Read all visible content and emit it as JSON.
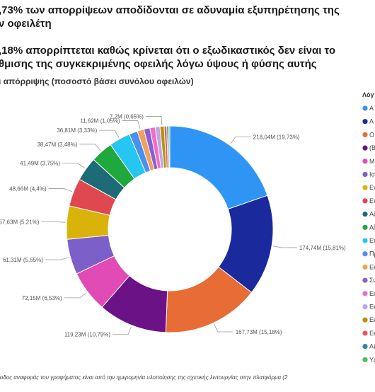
{
  "header": {
    "line1": ",73% των απορρίψεων αποδίδονται σε αδυναμία εξυπηρέτησης της",
    "line2": "ν οφειλέτη",
    "line3": ",18% απορρίπτεται καθώς κρίνεται ότι ο εξωδικαστικός δεν είναι το",
    "line4": "θμισης της συγκεκριμένης οφειλής λόγω ύψους ή φύσης αυτής"
  },
  "subtitle": "ι απόρριψης (ποσοστό βάσει συνόλου οφειλών)",
  "footnote": "ίοδος αναφοράς του γραφήματος είναι από την ημερομηνία υλοποίησης της σχετικής λειτουργίας στην πλατφόρμα (2",
  "chart_data": {
    "type": "pie",
    "variant": "donut",
    "legend_title": "Λόγ",
    "legend_position": "right",
    "slices": [
      {
        "legend": "Α",
        "label": "218,04M (19,73%)",
        "value": 218.04,
        "percent": 19.73,
        "color": "#2f95f5"
      },
      {
        "legend": "Α",
        "label": "174,74M (15,81%)",
        "value": 174.74,
        "percent": 15.81,
        "color": "#1a2a9c"
      },
      {
        "legend": "Ο",
        "label": "167,73M (15,18%)",
        "value": 167.73,
        "percent": 15.18,
        "color": "#e86c35"
      },
      {
        "legend": "(Β",
        "label": "119,23M (10,79%)",
        "value": 119.23,
        "percent": 10.79,
        "color": "#6b1287"
      },
      {
        "legend": "Μ",
        "label": "72,15M (6,53%)",
        "value": 72.15,
        "percent": 6.53,
        "color": "#e04bb5"
      },
      {
        "legend": "Ισ",
        "label": "61,31M (5,55%)",
        "value": 61.31,
        "percent": 5.55,
        "color": "#7c5fc9"
      },
      {
        "legend": "Εν",
        "label": "57,63M (5,21%)",
        "value": 57.63,
        "percent": 5.21,
        "color": "#dab30a"
      },
      {
        "legend": "Ετ",
        "label": "48,66M (4,4%)",
        "value": 48.66,
        "percent": 4.4,
        "color": "#e0484f"
      },
      {
        "legend": "Αδ",
        "label": "41,49M (3,75%)",
        "value": 41.49,
        "percent": 3.75,
        "color": "#1d6b76"
      },
      {
        "legend": "Αί",
        "label": "38,47M (3,48%)",
        "value": 38.47,
        "percent": 3.48,
        "color": "#1fa83c"
      },
      {
        "legend": "Ετ",
        "label": "36,81M (3,33%)",
        "value": 36.81,
        "percent": 3.33,
        "color": "#26c6f2"
      },
      {
        "legend": "Πρ",
        "label": "",
        "value": 14.6,
        "percent": 1.32,
        "color": "#4b8ff2"
      },
      {
        "legend": "Εκ",
        "label": "11,62M (1,05%)",
        "value": 11.62,
        "percent": 1.05,
        "color": "#f0a15a"
      },
      {
        "legend": "Συ",
        "label": "",
        "value": 10.4,
        "percent": 0.94,
        "color": "#8a5fd3"
      },
      {
        "legend": "Εκ",
        "label": "",
        "value": 9.3,
        "percent": 0.84,
        "color": "#f06ec4"
      },
      {
        "legend": "Εκ",
        "label": "",
        "value": 8.2,
        "percent": 0.74,
        "color": "#b9a6ee"
      },
      {
        "legend": "Εκ",
        "label": "7,2M (0,65%)",
        "value": 7.2,
        "percent": 0.65,
        "color": "#b8920a"
      },
      {
        "legend": "Εκ",
        "label": "",
        "value": 4.5,
        "percent": 0.41,
        "color": "#e85a5a"
      },
      {
        "legend": "Απ",
        "label": "",
        "value": 3.2,
        "percent": 0.29,
        "color": "#2c8a95"
      },
      {
        "legend": "Υς",
        "label": "",
        "value": 2.0,
        "percent": 0.18,
        "color": "#4cc05a"
      }
    ]
  }
}
